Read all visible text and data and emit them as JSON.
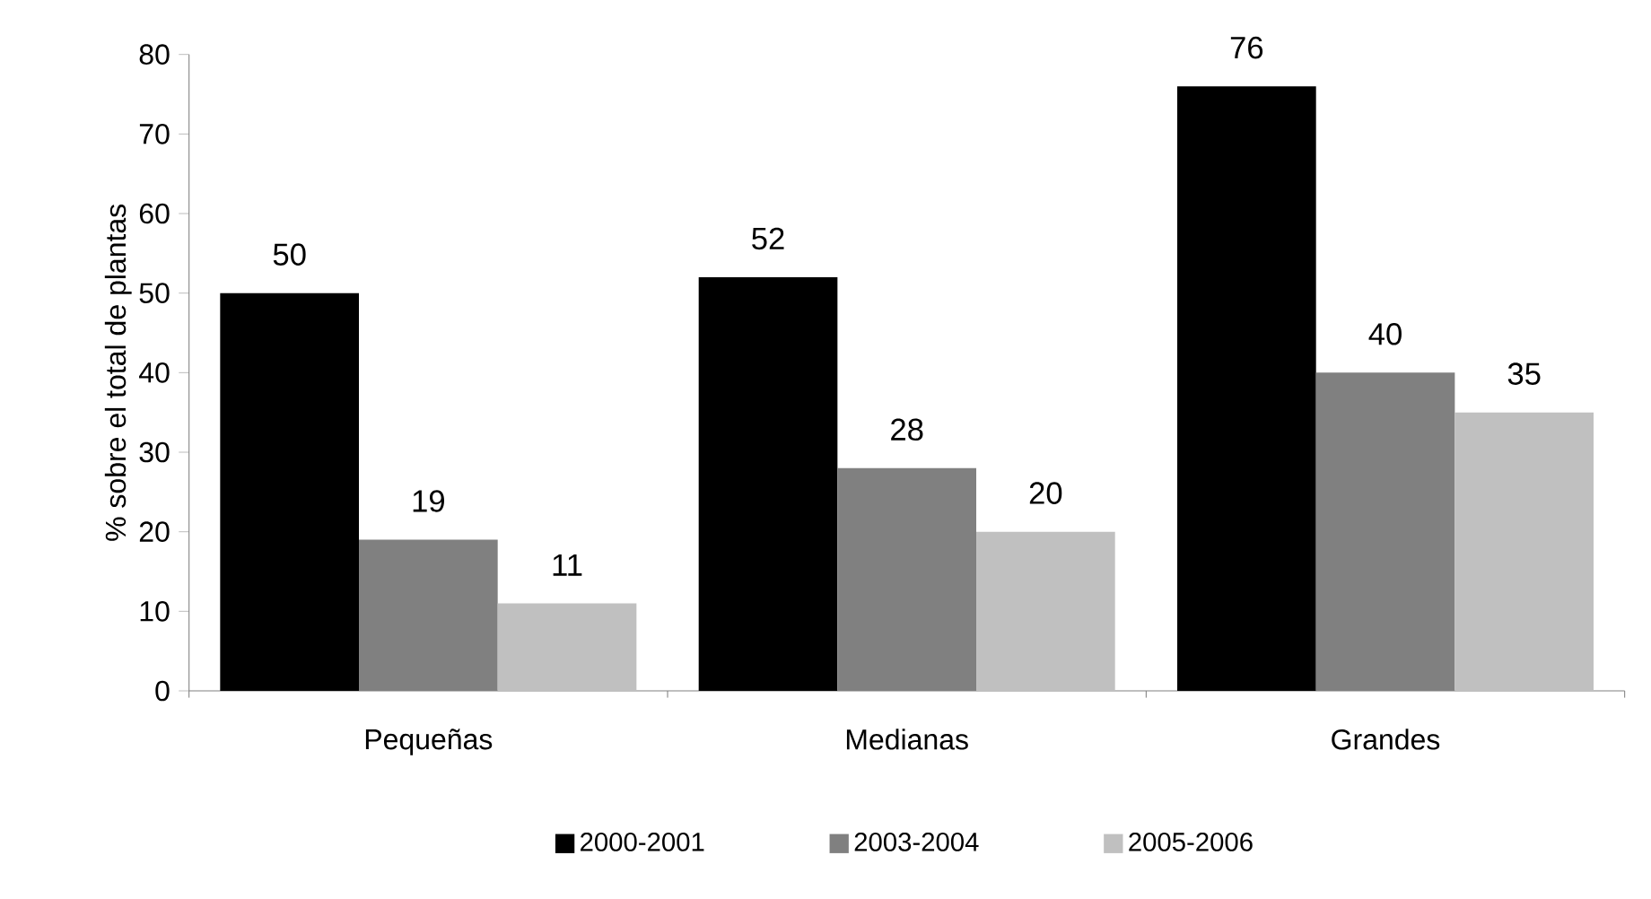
{
  "chart_data": {
    "type": "bar",
    "ylabel": "% sobre el total de plantas",
    "categories": [
      "Pequeñas",
      "Medianas",
      "Grandes"
    ],
    "series": [
      {
        "name": "2000-2001",
        "color": "#000000",
        "values": [
          50,
          52,
          76
        ]
      },
      {
        "name": "2003-2004",
        "color": "#808080",
        "values": [
          19,
          28,
          40
        ]
      },
      {
        "name": "2005-2006",
        "color": "#c0c0c0",
        "values": [
          11,
          20,
          35
        ]
      }
    ],
    "ylim": [
      0,
      80
    ],
    "yticks": [
      0,
      10,
      20,
      30,
      40,
      50,
      60,
      70,
      80
    ],
    "data_labels": true,
    "legend": "bottom",
    "grid": false
  }
}
